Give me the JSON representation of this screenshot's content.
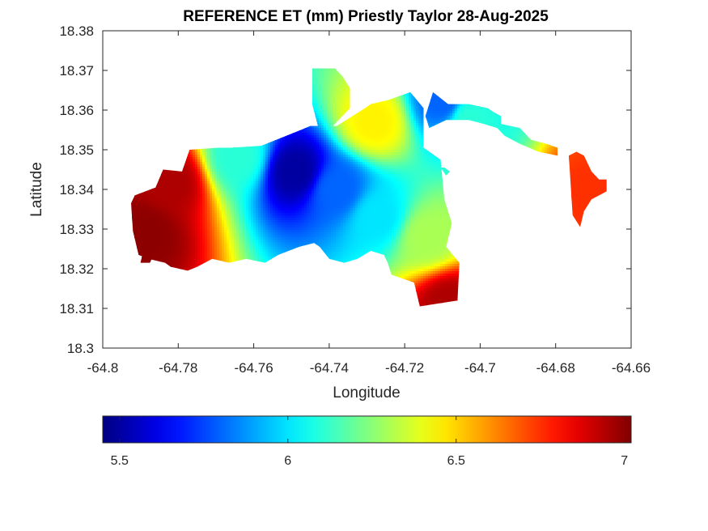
{
  "chart_data": {
    "type": "heatmap",
    "title": "REFERENCE ET (mm) Priestly Taylor 28-Aug-2025",
    "xlabel": "Longitude",
    "ylabel": "Latitude",
    "xlim": [
      -64.8,
      -64.66
    ],
    "ylim": [
      18.3,
      18.38
    ],
    "xticks": [
      -64.8,
      -64.78,
      -64.76,
      -64.74,
      -64.72,
      -64.7,
      -64.68,
      -64.66
    ],
    "xtick_labels": [
      "-64.8",
      "-64.78",
      "-64.76",
      "-64.74",
      "-64.72",
      "-64.7",
      "-64.68",
      "-64.66"
    ],
    "yticks": [
      18.3,
      18.31,
      18.32,
      18.33,
      18.34,
      18.35,
      18.36,
      18.37,
      18.38
    ],
    "ytick_labels": [
      "18.3",
      "18.31",
      "18.32",
      "18.33",
      "18.34",
      "18.35",
      "18.36",
      "18.37",
      "18.38"
    ],
    "colormap": "jet",
    "clim": [
      5.45,
      7.02
    ],
    "colorbar": {
      "orientation": "horizontal",
      "location": "below",
      "ticks": [
        5.5,
        6,
        6.5,
        7
      ],
      "tick_labels": [
        "5.5",
        "6",
        "6.5",
        "7"
      ]
    },
    "grid": false,
    "field": {
      "description_minimum": "ET minimum ~5.5 mm near lon -64.749, lat 18.344",
      "anchors": [
        {
          "lon": -64.749,
          "lat": 18.3445,
          "value": 5.5
        },
        {
          "lon": -64.738,
          "lat": 18.34,
          "value": 5.8
        },
        {
          "lon": -64.727,
          "lat": 18.333,
          "value": 6.0
        },
        {
          "lon": -64.714,
          "lat": 18.328,
          "value": 6.3
        },
        {
          "lon": -64.764,
          "lat": 18.348,
          "value": 6.1
        },
        {
          "lon": -64.71,
          "lat": 18.362,
          "value": 5.8
        },
        {
          "lon": -64.703,
          "lat": 18.358,
          "value": 6.1
        },
        {
          "lon": -64.728,
          "lat": 18.357,
          "value": 6.45
        },
        {
          "lon": -64.789,
          "lat": 18.329,
          "value": 7.0
        },
        {
          "lon": -64.782,
          "lat": 18.342,
          "value": 6.95
        },
        {
          "lon": -64.708,
          "lat": 18.311,
          "value": 6.95
        },
        {
          "lon": -64.67,
          "lat": 18.339,
          "value": 6.75
        }
      ]
    },
    "land_regions": [
      {
        "name": "main",
        "lon": [
          -64.7925,
          -64.7915,
          -64.786,
          -64.784,
          -64.779,
          -64.777,
          -64.7695,
          -64.766,
          -64.758,
          -64.7475,
          -64.745,
          -64.738,
          -64.7305,
          -64.729,
          -64.7245,
          -64.7185,
          -64.715,
          -64.715,
          -64.7105,
          -64.7095,
          -64.7075,
          -64.709,
          -64.7055,
          -64.706,
          -64.716,
          -64.7175,
          -64.7235,
          -64.7245,
          -64.7255,
          -64.729,
          -64.7325,
          -64.736,
          -64.74,
          -64.7425,
          -64.744,
          -64.748,
          -64.7535,
          -64.757,
          -64.762,
          -64.7665,
          -64.771,
          -64.775,
          -64.7775,
          -64.782,
          -64.7835,
          -64.788,
          -64.7905,
          -64.792,
          -64.7925
        ],
        "lat": [
          18.3365,
          18.3385,
          18.3405,
          18.345,
          18.3445,
          18.35,
          18.3505,
          18.3505,
          18.351,
          18.355,
          18.356,
          18.356,
          18.3605,
          18.3615,
          18.3625,
          18.3645,
          18.3605,
          18.3505,
          18.3475,
          18.3375,
          18.3315,
          18.3255,
          18.3215,
          18.312,
          18.3105,
          18.3165,
          18.3185,
          18.3215,
          18.3235,
          18.3245,
          18.3225,
          18.3215,
          18.3225,
          18.3255,
          18.3265,
          18.3255,
          18.3235,
          18.3215,
          18.3225,
          18.3215,
          18.3225,
          18.3205,
          18.3195,
          18.3205,
          18.3215,
          18.3225,
          18.3235,
          18.3295,
          18.3365
        ]
      },
      {
        "name": "north-spur",
        "lon": [
          -64.7445,
          -64.7445,
          -64.7385,
          -64.7365,
          -64.7345,
          -64.7345,
          -64.739,
          -64.743,
          -64.7445
        ],
        "lat": [
          18.3615,
          18.3705,
          18.3705,
          18.3685,
          18.3655,
          18.3605,
          18.356,
          18.356,
          18.3615
        ]
      },
      {
        "name": "east-arm",
        "lon": [
          -64.7145,
          -64.7125,
          -64.7085,
          -64.703,
          -64.698,
          -64.6965,
          -64.6945,
          -64.6945,
          -64.6895,
          -64.6865,
          -64.6825,
          -64.6795,
          -64.6795,
          -64.6845,
          -64.6895,
          -64.6935,
          -64.6955,
          -64.699,
          -64.703,
          -64.709,
          -64.7135,
          -64.7145
        ],
        "lat": [
          18.3585,
          18.3645,
          18.3615,
          18.3615,
          18.3605,
          18.3595,
          18.3585,
          18.3565,
          18.3555,
          18.3525,
          18.3515,
          18.3505,
          18.3485,
          18.3495,
          18.3515,
          18.3535,
          18.3555,
          18.3565,
          18.3575,
          18.3575,
          18.3555,
          18.3585
        ]
      },
      {
        "name": "east-tip",
        "lon": [
          -64.6765,
          -64.6745,
          -64.6725,
          -64.6705,
          -64.6685,
          -64.6665,
          -64.6665,
          -64.6705,
          -64.6725,
          -64.6735,
          -64.6755,
          -64.6765
        ],
        "lat": [
          18.3485,
          18.3495,
          18.3485,
          18.3445,
          18.3425,
          18.3425,
          18.3395,
          18.3375,
          18.3345,
          18.3305,
          18.3335,
          18.3485
        ]
      },
      {
        "name": "islet-1",
        "lon": [
          -64.7895,
          -64.787,
          -64.7875,
          -64.79,
          -64.7895
        ],
        "lat": [
          18.3235,
          18.3225,
          18.3215,
          18.3215,
          18.3235
        ]
      },
      {
        "name": "islet-2",
        "lon": [
          -64.7105,
          -64.7095,
          -64.708,
          -64.709,
          -64.7105
        ],
        "lat": [
          18.3455,
          18.3455,
          18.3445,
          18.3435,
          18.3455
        ]
      }
    ]
  }
}
